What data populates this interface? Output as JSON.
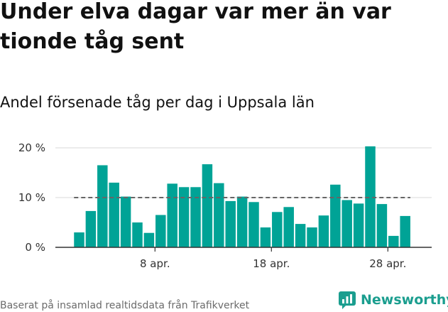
{
  "header": {
    "title": "Under elva dagar var mer än var tionde tåg sent",
    "subtitle": "Andel försenade tåg per dag i Uppsala län"
  },
  "footer": {
    "source": "Baserat på insamlad realtidsdata från Trafikverket"
  },
  "logo": {
    "text": "Newsworthy",
    "icon": "newsworthy-chart-icon"
  },
  "colors": {
    "bar": "#00a396",
    "reference_line": "#666666",
    "brand": "#1b9e8f"
  },
  "chart_data": {
    "type": "bar",
    "title": "Andel försenade tåg per dag i Uppsala län",
    "xlabel": "",
    "ylabel": "",
    "x": [
      "2024-04-01",
      "2024-04-02",
      "2024-04-03",
      "2024-04-04",
      "2024-04-05",
      "2024-04-06",
      "2024-04-07",
      "2024-04-08",
      "2024-04-09",
      "2024-04-10",
      "2024-04-11",
      "2024-04-12",
      "2024-04-13",
      "2024-04-14",
      "2024-04-15",
      "2024-04-16",
      "2024-04-17",
      "2024-04-18",
      "2024-04-19",
      "2024-04-20",
      "2024-04-21",
      "2024-04-22",
      "2024-04-23",
      "2024-04-24",
      "2024-04-25",
      "2024-04-26",
      "2024-04-27",
      "2024-04-28",
      "2024-04-29"
    ],
    "values": [
      3.0,
      7.3,
      16.5,
      13.0,
      10.2,
      5.0,
      2.9,
      6.5,
      12.8,
      12.1,
      12.1,
      16.7,
      12.9,
      9.3,
      10.2,
      9.1,
      4.0,
      7.1,
      8.1,
      4.7,
      4.0,
      6.4,
      12.6,
      9.5,
      8.8,
      20.3,
      8.7,
      2.3,
      6.3
    ],
    "reference_line": 10,
    "ylim": [
      0,
      22
    ],
    "yticks": [
      0,
      10,
      20
    ],
    "ytick_labels": [
      "0 %",
      "10 %",
      "20 %"
    ],
    "xtick_labels": [
      {
        "x": "2024-04-08",
        "label": "8 apr."
      },
      {
        "x": "2024-04-18",
        "label": "18 apr."
      },
      {
        "x": "2024-04-28",
        "label": "28 apr."
      }
    ],
    "grid": true
  }
}
